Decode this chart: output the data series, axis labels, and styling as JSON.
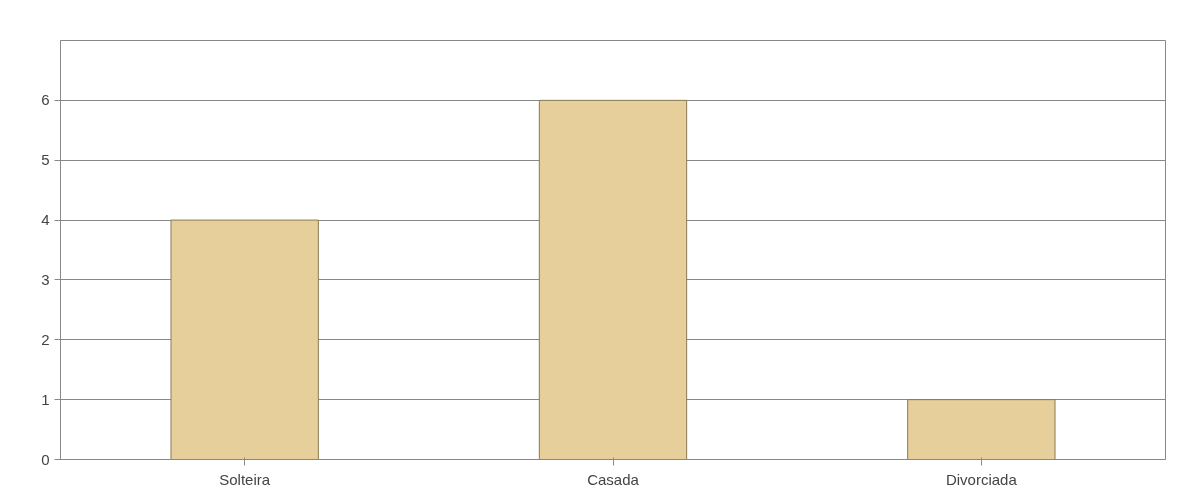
{
  "chart_data": {
    "type": "bar",
    "categories": [
      "Solteira",
      "Casada",
      "Divorciada"
    ],
    "values": [
      4,
      6,
      1
    ],
    "color": "#e6cf9a",
    "ylim": [
      0,
      7
    ],
    "yticks": [
      0,
      1,
      2,
      3,
      4,
      5,
      6
    ],
    "grid": "y"
  }
}
